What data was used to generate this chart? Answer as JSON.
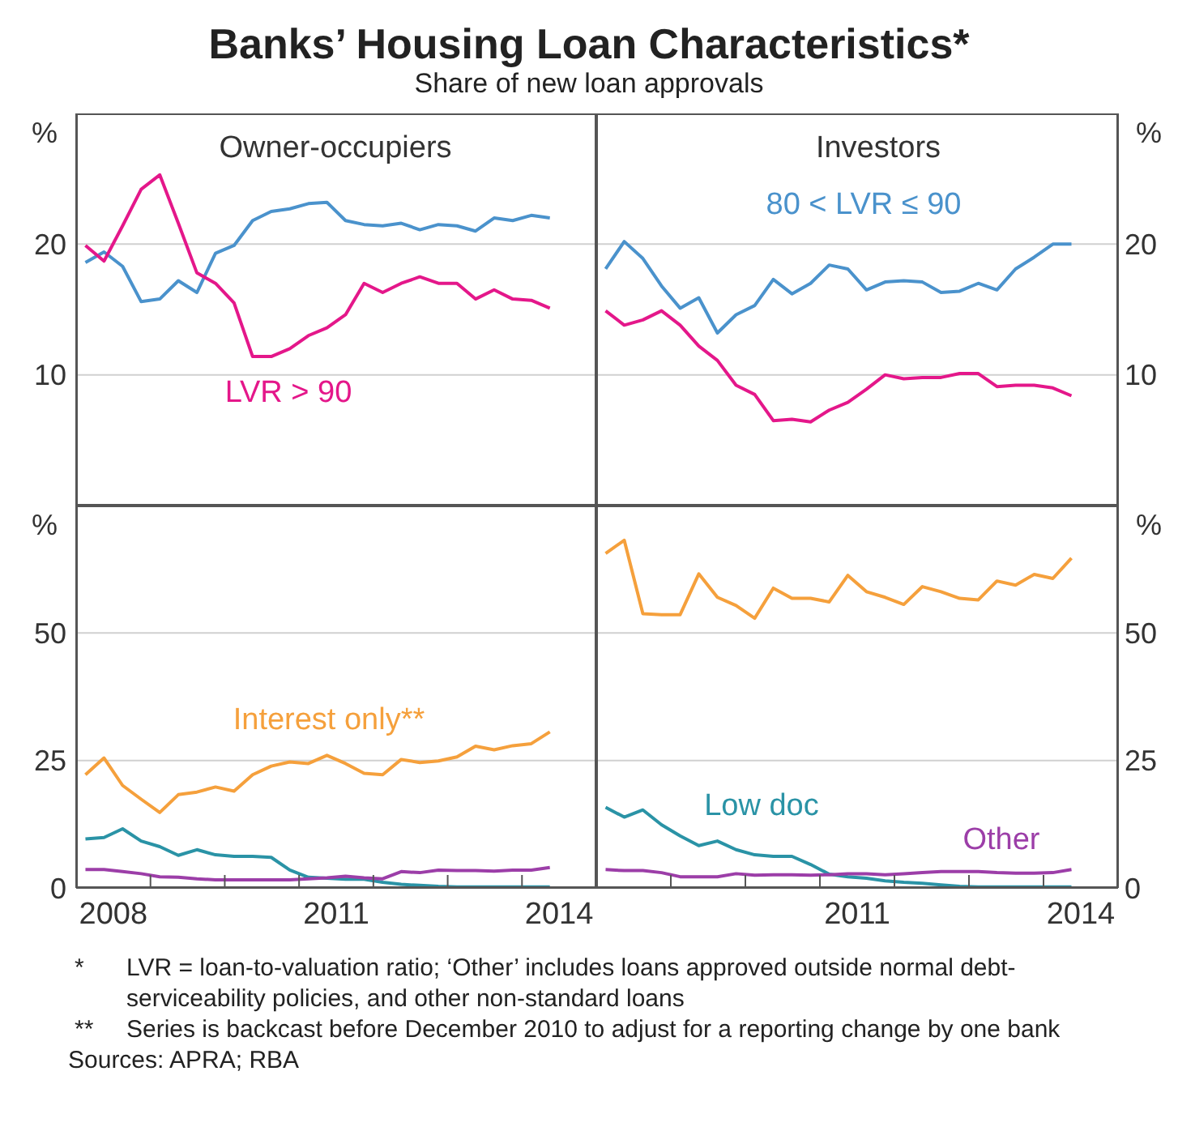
{
  "chart_data": [
    {
      "type": "line",
      "title": "Banks’ Housing Loan Characteristics*",
      "subtitle": "Share of new loan approvals",
      "annotations": [
        "Owner-occupiers"
      ],
      "ylabel": "%",
      "tick_labels": "y",
      "grid": "y",
      "xlim": [
        2008,
        2015
      ],
      "ylim": [
        0,
        30
      ],
      "yticks": [
        10,
        20
      ],
      "x": [
        2008.125,
        2008.375,
        2008.625,
        2008.875,
        2009.125,
        2009.375,
        2009.625,
        2009.875,
        2010.125,
        2010.375,
        2010.625,
        2010.875,
        2011.125,
        2011.375,
        2011.625,
        2011.875,
        2012.125,
        2012.375,
        2012.625,
        2012.875,
        2013.125,
        2013.375,
        2013.625,
        2013.875,
        2014.125,
        2014.375
      ],
      "series": [
        {
          "color": "#4a92cc",
          "values": [
            18.6,
            19.4,
            18.3,
            15.6,
            15.8,
            17.2,
            16.3,
            19.3,
            19.9,
            21.8,
            22.5,
            22.7,
            23.1,
            23.2,
            21.8,
            21.5,
            21.4,
            21.6,
            21.1,
            21.5,
            21.4,
            21.0,
            22.0,
            21.8,
            22.2,
            22.0
          ]
        },
        {
          "name": "LVR > 90",
          "color": "#e4178a",
          "values": [
            19.9,
            18.7,
            21.4,
            24.2,
            25.3,
            21.6,
            17.8,
            17.0,
            15.5,
            11.4,
            11.4,
            12.0,
            13.0,
            13.6,
            14.6,
            17.0,
            16.3,
            17.0,
            17.5,
            17.0,
            17.0,
            15.8,
            16.5,
            15.8,
            15.7,
            15.1
          ]
        }
      ]
    },
    {
      "type": "line",
      "annotations": [
        "Investors"
      ],
      "ylabel": "%",
      "tick_labels": "y",
      "grid": "y",
      "xlim": [
        2008,
        2015
      ],
      "ylim": [
        0,
        30
      ],
      "yticks": [
        10,
        20
      ],
      "x": [
        2008.125,
        2008.375,
        2008.625,
        2008.875,
        2009.125,
        2009.375,
        2009.625,
        2009.875,
        2010.125,
        2010.375,
        2010.625,
        2010.875,
        2011.125,
        2011.375,
        2011.625,
        2011.875,
        2012.125,
        2012.375,
        2012.625,
        2012.875,
        2013.125,
        2013.375,
        2013.625,
        2013.875,
        2014.125,
        2014.375
      ],
      "series": [
        {
          "name": "80 < LVR ≤ 90",
          "color": "#4a92cc",
          "values": [
            18.1,
            20.2,
            18.9,
            16.8,
            15.1,
            15.9,
            13.2,
            14.6,
            15.3,
            17.3,
            16.2,
            17.0,
            18.4,
            18.1,
            16.5,
            17.1,
            17.2,
            17.1,
            16.3,
            16.4,
            17.0,
            16.5,
            18.1,
            19.0,
            20.0,
            20.0
          ]
        },
        {
          "color": "#e4178a",
          "values": [
            14.9,
            13.8,
            14.2,
            14.9,
            13.8,
            12.2,
            11.1,
            9.2,
            8.5,
            6.5,
            6.6,
            6.4,
            7.3,
            7.9,
            8.9,
            10.0,
            9.7,
            9.8,
            9.8,
            10.1,
            10.1,
            9.1,
            9.2,
            9.2,
            9.0,
            8.4
          ]
        }
      ]
    },
    {
      "type": "line",
      "annotations": [
        "*   LVR = loan-to-valuation ratio; ‘Other’ includes loans approved outside normal debt-serviceability policies, and other non-standard loans",
        "**   Series is backcast before December 2010 to adjust for a reporting change by one bank"
      ],
      "ylabel": "%",
      "grid": "y",
      "xlim": [
        2008,
        2015
      ],
      "ylim": [
        0,
        75
      ],
      "yticks": [
        0,
        25,
        50
      ],
      "xticks": [
        {
          "value": 2008.5,
          "label": "2008"
        },
        {
          "value": 2009,
          "label": null
        },
        {
          "value": 2010,
          "label": null
        },
        {
          "value": 2011,
          "label": null
        },
        {
          "value": 2011.5,
          "label": "2011"
        },
        {
          "value": 2012,
          "label": null
        },
        {
          "value": 2013,
          "label": null
        },
        {
          "value": 2014,
          "label": null
        },
        {
          "value": 2014.5,
          "label": "2014"
        }
      ],
      "x": [
        2008.125,
        2008.375,
        2008.625,
        2008.875,
        2009.125,
        2009.375,
        2009.625,
        2009.875,
        2010.125,
        2010.375,
        2010.625,
        2010.875,
        2011.125,
        2011.375,
        2011.625,
        2011.875,
        2012.125,
        2012.375,
        2012.625,
        2012.875,
        2013.125,
        2013.375,
        2013.625,
        2013.875,
        2014.125,
        2014.375
      ],
      "series": [
        {
          "name": "Interest only**",
          "color": "#f5a03c",
          "values": [
            22.2,
            25.5,
            20.1,
            17.4,
            14.8,
            18.3,
            18.8,
            19.8,
            19.0,
            22.2,
            23.9,
            24.7,
            24.4,
            26.0,
            24.4,
            22.5,
            22.2,
            25.2,
            24.6,
            24.9,
            25.7,
            27.8,
            27.1,
            27.9,
            28.3,
            30.6
          ]
        },
        {
          "color": "#2a93a6",
          "values": [
            9.6,
            9.9,
            11.6,
            9.2,
            8.1,
            6.4,
            7.5,
            6.5,
            6.2,
            6.2,
            6.0,
            3.5,
            2.1,
            1.9,
            1.7,
            1.7,
            1.1,
            0.7,
            0.5,
            0.3,
            0.2,
            0.2,
            0.2,
            0.2,
            0.2,
            0.2
          ]
        },
        {
          "color": "#9c3ea8",
          "values": [
            3.6,
            3.6,
            3.2,
            2.8,
            2.2,
            2.1,
            1.8,
            1.6,
            1.6,
            1.6,
            1.6,
            1.6,
            1.8,
            2.0,
            2.3,
            2.0,
            1.8,
            3.2,
            3.0,
            3.5,
            3.4,
            3.4,
            3.3,
            3.5,
            3.5,
            4.0
          ]
        }
      ]
    },
    {
      "type": "line",
      "annotations": [
        "Sources: APRA; RBA"
      ],
      "ylabel": "%",
      "grid": "y",
      "xlim": [
        2008,
        2015
      ],
      "ylim": [
        0,
        75
      ],
      "yticks": [
        0,
        25,
        50
      ],
      "xticks": [
        {
          "value": 2009,
          "label": null
        },
        {
          "value": 2010,
          "label": null
        },
        {
          "value": 2011,
          "label": null
        },
        {
          "value": 2011.5,
          "label": "2011"
        },
        {
          "value": 2012,
          "label": null
        },
        {
          "value": 2013,
          "label": null
        },
        {
          "value": 2014,
          "label": null
        },
        {
          "value": 2014.5,
          "label": "2014"
        }
      ],
      "x": [
        2008.125,
        2008.375,
        2008.625,
        2008.875,
        2009.125,
        2009.375,
        2009.625,
        2009.875,
        2010.125,
        2010.375,
        2010.625,
        2010.875,
        2011.125,
        2011.375,
        2011.625,
        2011.875,
        2012.125,
        2012.375,
        2012.625,
        2012.875,
        2013.125,
        2013.375,
        2013.625,
        2013.875,
        2014.125,
        2014.375
      ],
      "series": [
        {
          "color": "#f5a03c",
          "values": [
            65.6,
            68.2,
            53.8,
            53.6,
            53.6,
            61.6,
            57.0,
            55.4,
            52.9,
            58.8,
            56.8,
            56.8,
            56.1,
            61.3,
            58.1,
            57.0,
            55.6,
            59.1,
            58.1,
            56.8,
            56.5,
            60.2,
            59.4,
            61.5,
            60.7,
            64.7
          ]
        },
        {
          "name": "Low doc",
          "color": "#2a93a6",
          "values": [
            15.8,
            13.9,
            15.3,
            12.4,
            10.2,
            8.3,
            9.2,
            7.5,
            6.5,
            6.2,
            6.2,
            4.6,
            2.7,
            2.2,
            1.9,
            1.4,
            1.1,
            0.9,
            0.6,
            0.3,
            0.2,
            0.2,
            0.2,
            0.2,
            0.2,
            0.2
          ]
        },
        {
          "name": "Other",
          "color": "#9c3ea8",
          "values": [
            3.6,
            3.4,
            3.4,
            3.0,
            2.2,
            2.2,
            2.2,
            2.8,
            2.5,
            2.6,
            2.6,
            2.5,
            2.6,
            2.8,
            2.8,
            2.6,
            2.8,
            3.0,
            3.2,
            3.2,
            3.2,
            3.0,
            2.9,
            2.9,
            3.0,
            3.6
          ]
        }
      ]
    }
  ]
}
